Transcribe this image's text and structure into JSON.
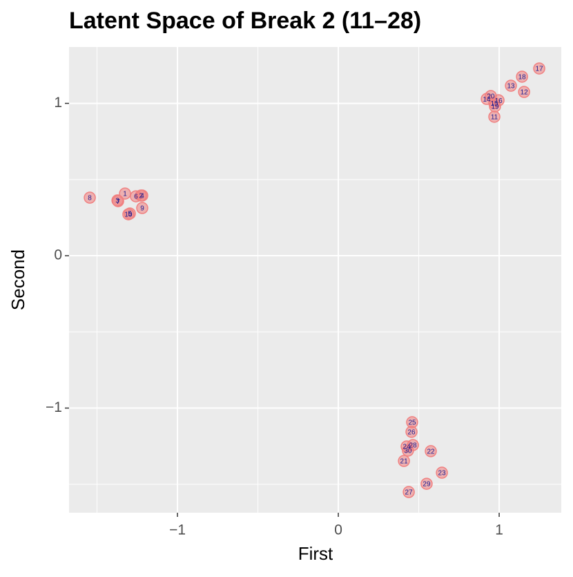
{
  "chart_data": {
    "type": "scatter",
    "title": "Latent Space of Break 2 (11–28)",
    "xlabel": "First",
    "ylabel": "Second",
    "labels": [
      "1",
      "2",
      "3",
      "4",
      "5",
      "6",
      "7",
      "8",
      "9",
      "10",
      "11",
      "12",
      "13",
      "14",
      "15",
      "16",
      "17",
      "18",
      "19",
      "20",
      "21",
      "22",
      "23",
      "24",
      "25",
      "26",
      "27",
      "28",
      "29",
      "30"
    ],
    "x": [
      -1.326,
      -1.227,
      -1.373,
      -1.219,
      -1.296,
      -1.258,
      -1.369,
      -1.545,
      -1.219,
      -1.305,
      0.97,
      1.155,
      1.073,
      0.923,
      0.97,
      0.996,
      1.249,
      1.142,
      0.974,
      0.948,
      0.408,
      0.575,
      0.644,
      0.425,
      0.459,
      0.455,
      0.438,
      0.464,
      0.549,
      0.433
    ],
    "y": [
      0.408,
      0.395,
      0.363,
      0.395,
      0.277,
      0.39,
      0.358,
      0.381,
      0.313,
      0.272,
      0.912,
      1.075,
      1.116,
      1.029,
      1.002,
      1.02,
      1.229,
      1.175,
      0.98,
      1.048,
      -1.347,
      -1.283,
      -1.424,
      -1.252,
      -1.093,
      -1.156,
      -1.551,
      -1.243,
      -1.497,
      -1.279
    ],
    "color": "#f08080",
    "label_color": "#1b1b8f",
    "xlim": [
      -1.674,
      1.386
    ],
    "ylim": [
      -1.687,
      1.37
    ],
    "xticks": [
      {
        "value": -1,
        "label": "−1"
      },
      0,
      1
    ],
    "yticks": [
      {
        "value": -1,
        "label": "−1"
      },
      0,
      1
    ],
    "grid": true
  }
}
